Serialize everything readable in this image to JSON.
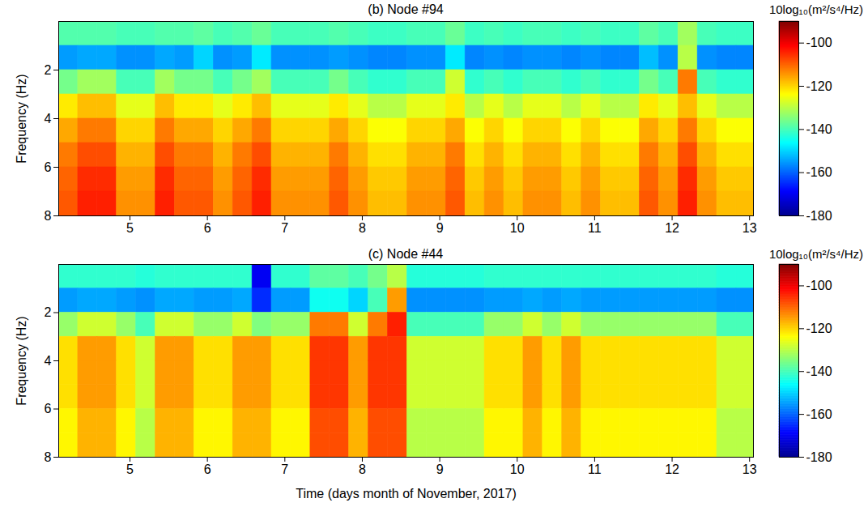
{
  "chart_data": [
    {
      "type": "heatmap",
      "title": "(b) Node #94",
      "ylabel": "Frequency (Hz)",
      "xlim": [
        4.08,
        13.05
      ],
      "xticks": [
        5,
        6,
        7,
        8,
        9,
        10,
        11,
        12,
        13
      ],
      "ylim": [
        0,
        8
      ],
      "yticks": [
        2,
        4,
        6,
        8
      ],
      "x_edges": [
        4.08,
        4.33,
        4.58,
        4.83,
        5.08,
        5.33,
        5.58,
        5.83,
        6.08,
        6.33,
        6.58,
        6.83,
        7.08,
        7.33,
        7.58,
        7.83,
        8.08,
        8.33,
        8.58,
        8.83,
        9.08,
        9.33,
        9.58,
        9.83,
        10.08,
        10.33,
        10.58,
        10.83,
        11.08,
        11.33,
        11.58,
        11.83,
        12.08,
        12.33,
        12.58,
        12.83,
        13.08
      ],
      "y_edges": [
        0,
        1,
        2,
        3,
        4,
        5,
        6,
        7,
        8
      ],
      "values": [
        [
          -139,
          -139,
          -139,
          -140,
          -140,
          -139,
          -139,
          -138,
          -140,
          -139,
          -137,
          -140,
          -140,
          -140,
          -139,
          -140,
          -141,
          -141,
          -140,
          -140,
          -137,
          -141,
          -140,
          -141,
          -140,
          -140,
          -141,
          -140,
          -141,
          -141,
          -138,
          -140,
          -132,
          -140,
          -141,
          -141
        ],
        [
          -155,
          -154,
          -154,
          -156,
          -156,
          -154,
          -155,
          -150,
          -156,
          -155,
          -148,
          -156,
          -156,
          -156,
          -155,
          -156,
          -157,
          -157,
          -156,
          -156,
          -148,
          -157,
          -156,
          -157,
          -156,
          -156,
          -157,
          -156,
          -157,
          -157,
          -152,
          -156,
          -130,
          -156,
          -157,
          -157
        ],
        [
          -136,
          -132,
          -132,
          -140,
          -140,
          -132,
          -136,
          -136,
          -140,
          -136,
          -132,
          -140,
          -140,
          -140,
          -136,
          -140,
          -142,
          -142,
          -140,
          -140,
          -128,
          -142,
          -140,
          -142,
          -140,
          -140,
          -142,
          -140,
          -142,
          -142,
          -136,
          -140,
          -112,
          -140,
          -142,
          -142
        ],
        [
          -122,
          -118,
          -118,
          -126,
          -126,
          -118,
          -122,
          -122,
          -126,
          -122,
          -118,
          -126,
          -126,
          -126,
          -122,
          -126,
          -130,
          -130,
          -126,
          -126,
          -122,
          -130,
          -126,
          -130,
          -126,
          -126,
          -130,
          -126,
          -130,
          -130,
          -122,
          -126,
          -118,
          -126,
          -130,
          -130
        ],
        [
          -116,
          -112,
          -112,
          -120,
          -120,
          -112,
          -116,
          -116,
          -120,
          -116,
          -112,
          -120,
          -120,
          -120,
          -116,
          -120,
          -124,
          -124,
          -120,
          -120,
          -116,
          -124,
          -120,
          -124,
          -120,
          -120,
          -124,
          -120,
          -124,
          -124,
          -116,
          -120,
          -112,
          -120,
          -124,
          -124
        ],
        [
          -112,
          -108,
          -108,
          -117,
          -117,
          -108,
          -112,
          -112,
          -117,
          -112,
          -108,
          -117,
          -117,
          -117,
          -112,
          -117,
          -121,
          -121,
          -117,
          -117,
          -112,
          -121,
          -117,
          -121,
          -117,
          -117,
          -121,
          -117,
          -121,
          -121,
          -112,
          -117,
          -108,
          -117,
          -121,
          -121
        ],
        [
          -110,
          -105,
          -105,
          -115,
          -115,
          -105,
          -110,
          -110,
          -115,
          -110,
          -105,
          -115,
          -115,
          -115,
          -110,
          -115,
          -119,
          -119,
          -115,
          -115,
          -110,
          -119,
          -115,
          -119,
          -115,
          -115,
          -119,
          -115,
          -119,
          -119,
          -110,
          -115,
          -105,
          -115,
          -119,
          -119
        ],
        [
          -109,
          -104,
          -104,
          -114,
          -114,
          -104,
          -109,
          -109,
          -114,
          -109,
          -104,
          -114,
          -114,
          -114,
          -109,
          -114,
          -118,
          -118,
          -114,
          -114,
          -109,
          -118,
          -114,
          -118,
          -114,
          -114,
          -118,
          -114,
          -118,
          -118,
          -109,
          -114,
          -104,
          -114,
          -118,
          -118
        ]
      ],
      "colorbar": {
        "range": [
          -180,
          -90
        ],
        "ticks": [
          -180,
          -160,
          -140,
          -120,
          -100
        ],
        "label": "10log₁₀(m²/s⁴/Hz)"
      }
    },
    {
      "type": "heatmap",
      "title": "(c) Node #44",
      "ylabel": "Frequency (Hz)",
      "xlabel": "Time (days month of November, 2017)",
      "xlim": [
        4.08,
        13.05
      ],
      "xticks": [
        5,
        6,
        7,
        8,
        9,
        10,
        11,
        12,
        13
      ],
      "ylim": [
        0,
        8
      ],
      "yticks": [
        2,
        4,
        6,
        8
      ],
      "x_edges": [
        4.08,
        4.33,
        4.58,
        4.83,
        5.08,
        5.33,
        5.58,
        5.83,
        6.08,
        6.33,
        6.58,
        6.83,
        7.08,
        7.33,
        7.58,
        7.83,
        8.08,
        8.33,
        8.58,
        8.83,
        9.08,
        9.33,
        9.58,
        9.83,
        10.08,
        10.33,
        10.58,
        10.83,
        11.08,
        11.33,
        11.58,
        11.83,
        12.08,
        12.33,
        12.58,
        12.83,
        13.08
      ],
      "y_edges": [
        0,
        1,
        2,
        3,
        4,
        5,
        6,
        7,
        8
      ],
      "values": [
        [
          -142,
          -142,
          -142,
          -142,
          -143,
          -142,
          -142,
          -142,
          -142,
          -142,
          -170,
          -142,
          -142,
          -138,
          -138,
          -140,
          -136,
          -130,
          -143,
          -143,
          -143,
          -143,
          -142,
          -142,
          -142,
          -142,
          -142,
          -142,
          -142,
          -142,
          -142,
          -142,
          -142,
          -142,
          -143,
          -143
        ],
        [
          -155,
          -154,
          -154,
          -155,
          -156,
          -154,
          -154,
          -155,
          -155,
          -154,
          -165,
          -155,
          -155,
          -145,
          -145,
          -150,
          -140,
          -115,
          -156,
          -156,
          -156,
          -156,
          -155,
          -155,
          -154,
          -155,
          -154,
          -155,
          -155,
          -155,
          -155,
          -155,
          -155,
          -155,
          -156,
          -156
        ],
        [
          -133,
          -128,
          -128,
          -133,
          -140,
          -128,
          -128,
          -133,
          -133,
          -128,
          -135,
          -133,
          -133,
          -112,
          -112,
          -128,
          -112,
          -104,
          -140,
          -140,
          -140,
          -140,
          -133,
          -133,
          -128,
          -133,
          -128,
          -133,
          -133,
          -133,
          -133,
          -133,
          -133,
          -133,
          -140,
          -140
        ],
        [
          -121,
          -115,
          -115,
          -121,
          -128,
          -115,
          -115,
          -121,
          -121,
          -115,
          -115,
          -121,
          -121,
          -106,
          -106,
          -115,
          -106,
          -106,
          -128,
          -128,
          -128,
          -128,
          -121,
          -121,
          -115,
          -121,
          -115,
          -121,
          -121,
          -121,
          -121,
          -121,
          -121,
          -121,
          -128,
          -128
        ],
        [
          -121,
          -115,
          -115,
          -121,
          -128,
          -115,
          -115,
          -121,
          -121,
          -115,
          -115,
          -121,
          -121,
          -106,
          -106,
          -115,
          -106,
          -106,
          -128,
          -128,
          -128,
          -128,
          -121,
          -121,
          -115,
          -121,
          -115,
          -121,
          -121,
          -121,
          -121,
          -121,
          -121,
          -121,
          -128,
          -128
        ],
        [
          -121,
          -115,
          -115,
          -121,
          -128,
          -115,
          -115,
          -121,
          -121,
          -115,
          -115,
          -121,
          -121,
          -106,
          -106,
          -115,
          -106,
          -106,
          -128,
          -128,
          -128,
          -128,
          -121,
          -121,
          -115,
          -121,
          -115,
          -121,
          -121,
          -121,
          -121,
          -121,
          -121,
          -121,
          -128,
          -128
        ],
        [
          -123,
          -117,
          -117,
          -123,
          -130,
          -117,
          -117,
          -123,
          -123,
          -117,
          -117,
          -123,
          -123,
          -108,
          -108,
          -117,
          -108,
          -108,
          -130,
          -130,
          -130,
          -130,
          -123,
          -123,
          -117,
          -123,
          -117,
          -123,
          -123,
          -123,
          -123,
          -123,
          -123,
          -123,
          -130,
          -130
        ],
        [
          -123,
          -117,
          -117,
          -123,
          -130,
          -117,
          -117,
          -123,
          -123,
          -117,
          -117,
          -123,
          -123,
          -108,
          -108,
          -117,
          -108,
          -108,
          -130,
          -130,
          -130,
          -130,
          -123,
          -123,
          -117,
          -123,
          -117,
          -123,
          -123,
          -123,
          -123,
          -123,
          -123,
          -123,
          -130,
          -130
        ]
      ],
      "colorbar": {
        "range": [
          -180,
          -90
        ],
        "ticks": [
          -180,
          -160,
          -140,
          -120,
          -100
        ],
        "label": "10log₁₀(m²/s⁴/Hz)"
      }
    }
  ]
}
